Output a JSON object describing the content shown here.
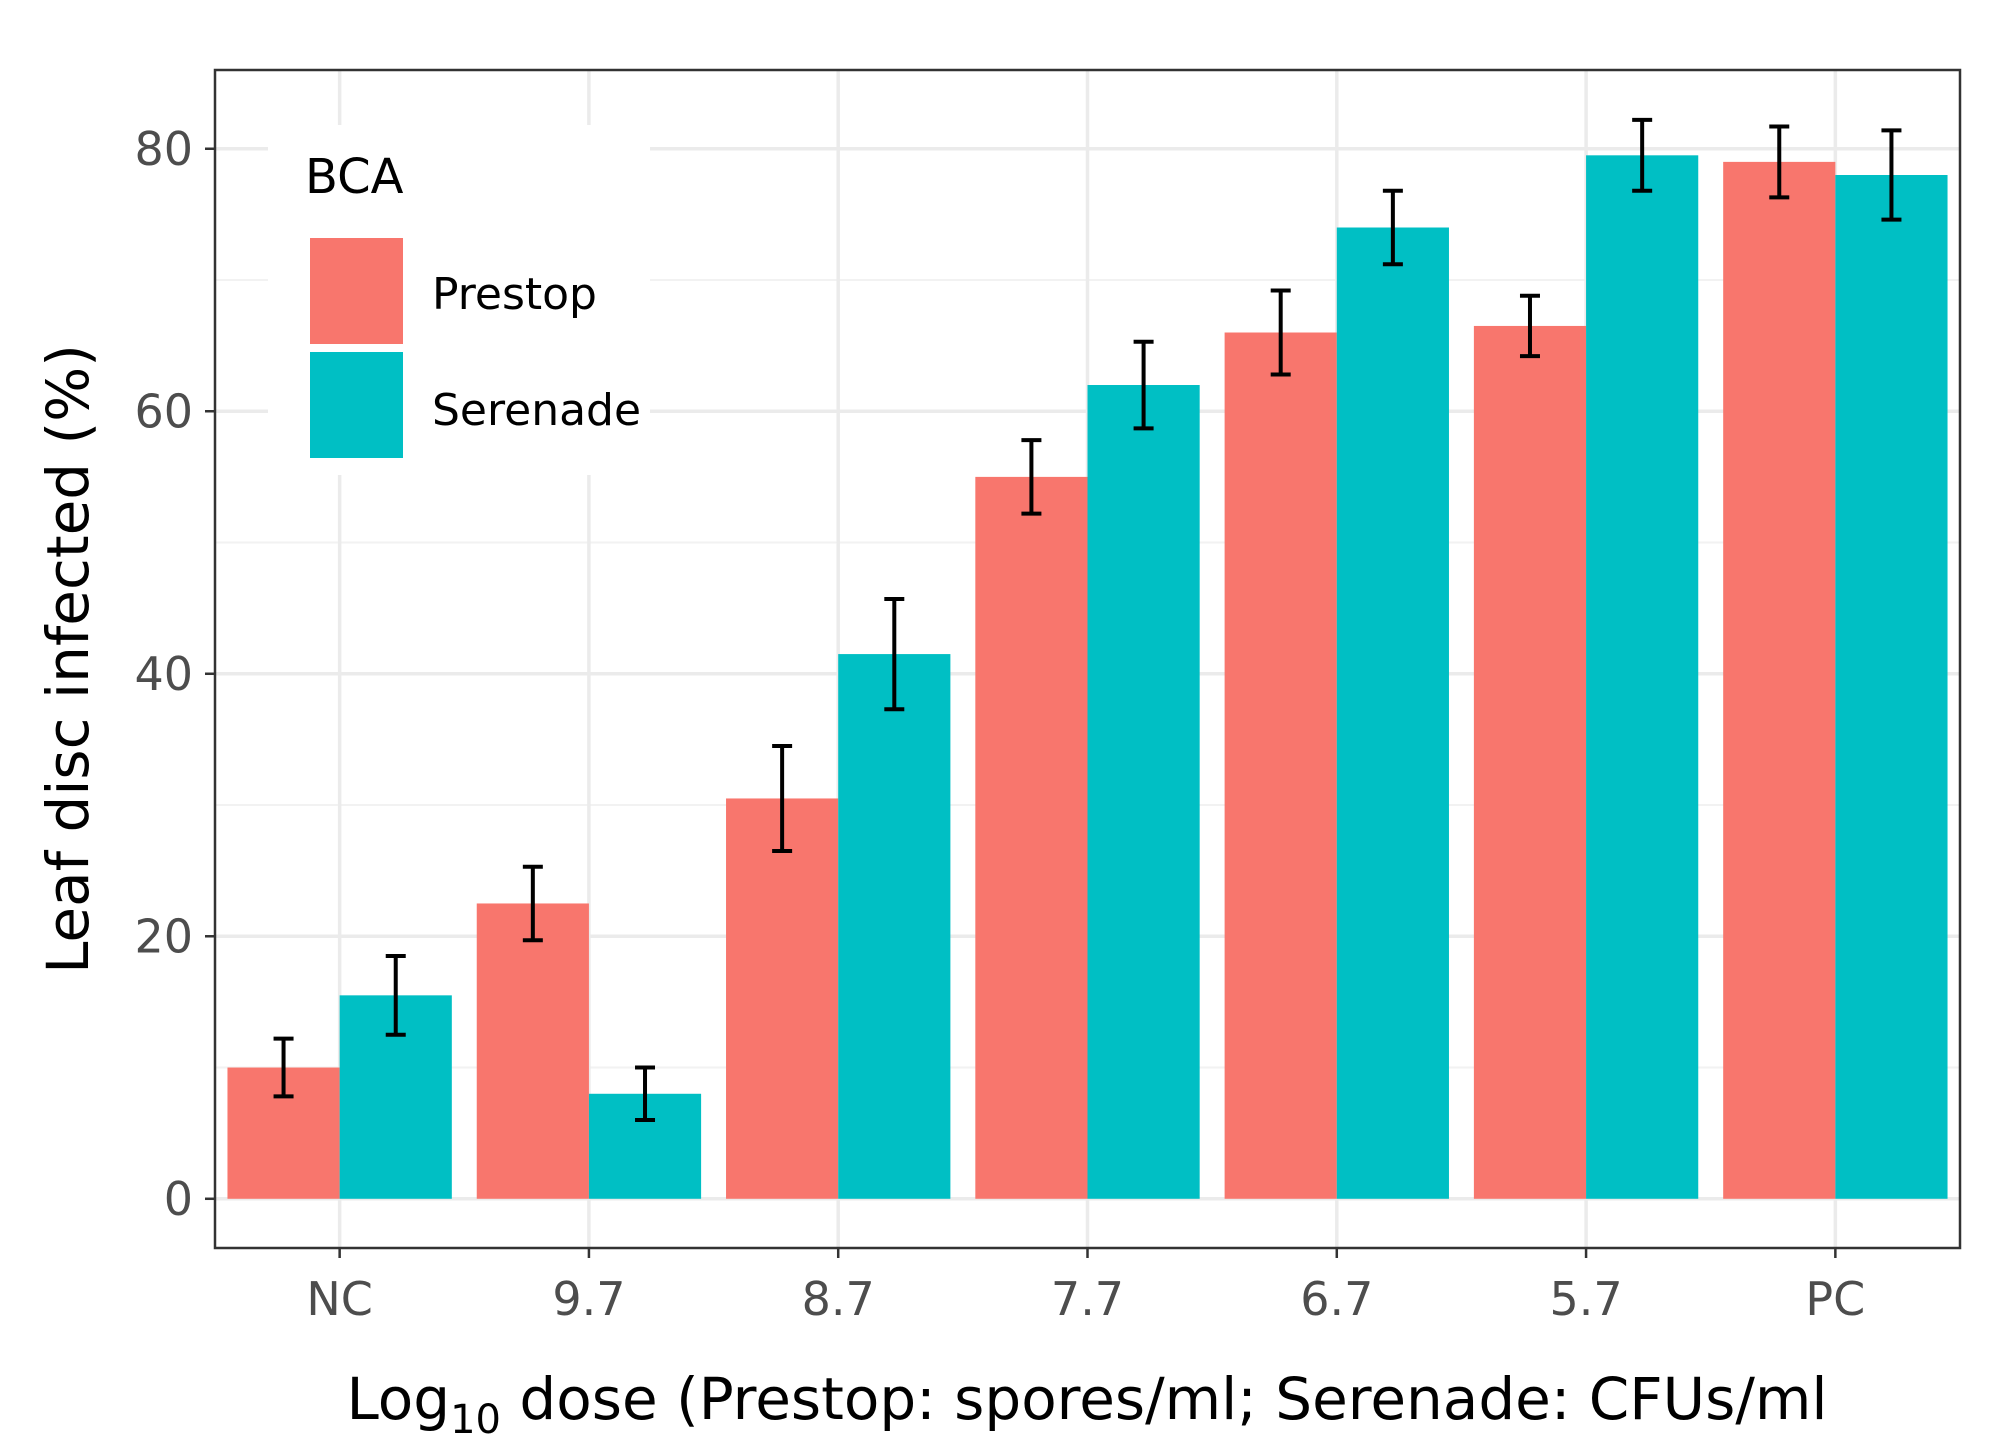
{
  "chart_data": {
    "type": "bar",
    "categories": [
      "NC",
      "9.7",
      "8.7",
      "7.7",
      "6.7",
      "5.7",
      "PC"
    ],
    "series": [
      {
        "name": "Prestop",
        "color": "#F8766D",
        "values": [
          10,
          22.5,
          30.5,
          55,
          66,
          66.5,
          79
        ],
        "errors": [
          2.2,
          2.8,
          4.0,
          2.8,
          3.2,
          2.3,
          2.7
        ]
      },
      {
        "name": "Serenade",
        "color": "#00BFC4",
        "values": [
          15.5,
          8,
          41.5,
          62,
          74,
          79.5,
          78
        ],
        "errors": [
          3.0,
          2.0,
          4.2,
          3.3,
          2.8,
          2.7,
          3.4
        ]
      }
    ],
    "ylabel": "Leaf disc infected (%)",
    "xlabel": {
      "prefix": "Log",
      "subscript": "10",
      "suffix": " dose (Prestop: spores/ml; Serenade: CFUs/ml"
    },
    "ylim": [
      -3.75,
      86
    ],
    "yticks": [
      0,
      20,
      40,
      60,
      80
    ],
    "grid": true,
    "legend": {
      "title": "BCA",
      "position": "top-left"
    }
  }
}
